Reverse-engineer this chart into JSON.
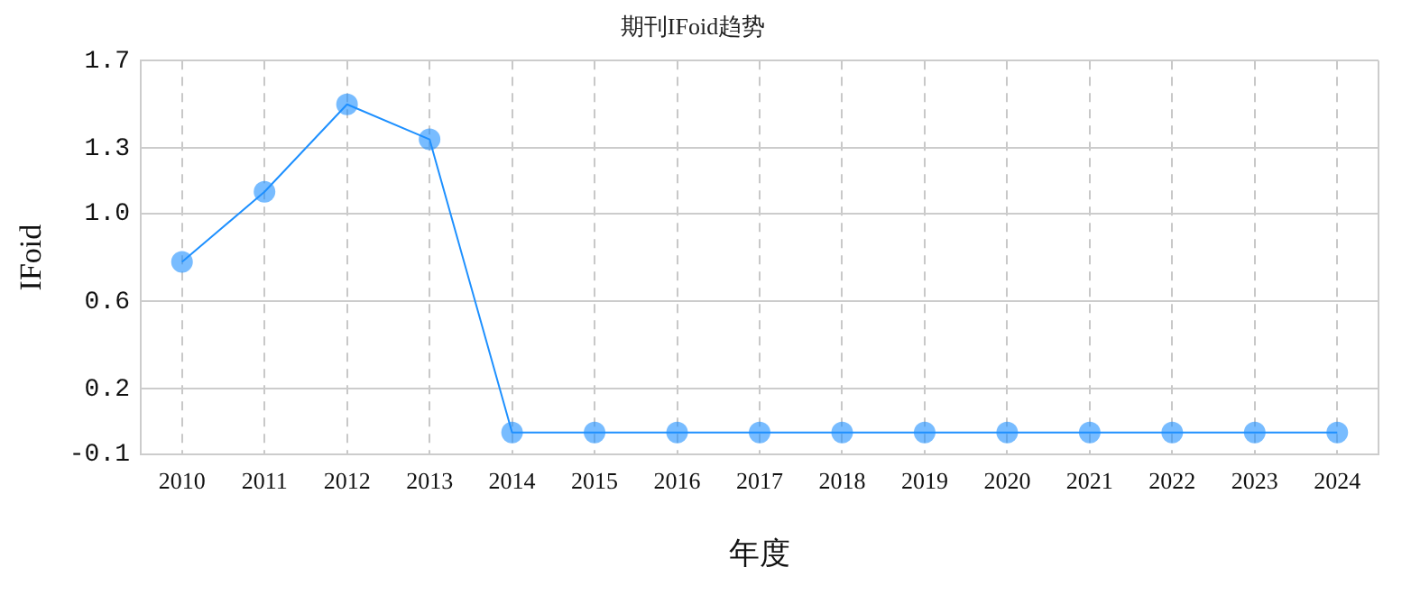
{
  "chart_data": {
    "type": "line",
    "title": "期刊IFoid趋势",
    "xlabel": "年度",
    "ylabel": "IFoid",
    "categories": [
      "2010",
      "2011",
      "2012",
      "2013",
      "2014",
      "2015",
      "2016",
      "2017",
      "2018",
      "2019",
      "2020",
      "2021",
      "2022",
      "2023",
      "2024"
    ],
    "series": [
      {
        "color": "#1e90ff",
        "values": [
          0.78,
          1.1,
          1.5,
          1.34,
          0,
          0,
          0,
          0,
          0,
          0,
          0,
          0,
          0,
          0,
          0
        ]
      }
    ],
    "ylim": [
      -0.1,
      1.7
    ],
    "yticks": [
      -0.1,
      0.2,
      0.6,
      {
        "value": 1.0,
        "label": "1.0"
      },
      1.3,
      1.7
    ],
    "grid": true,
    "marker": "circle",
    "line_style": "solid",
    "legend": false
  }
}
